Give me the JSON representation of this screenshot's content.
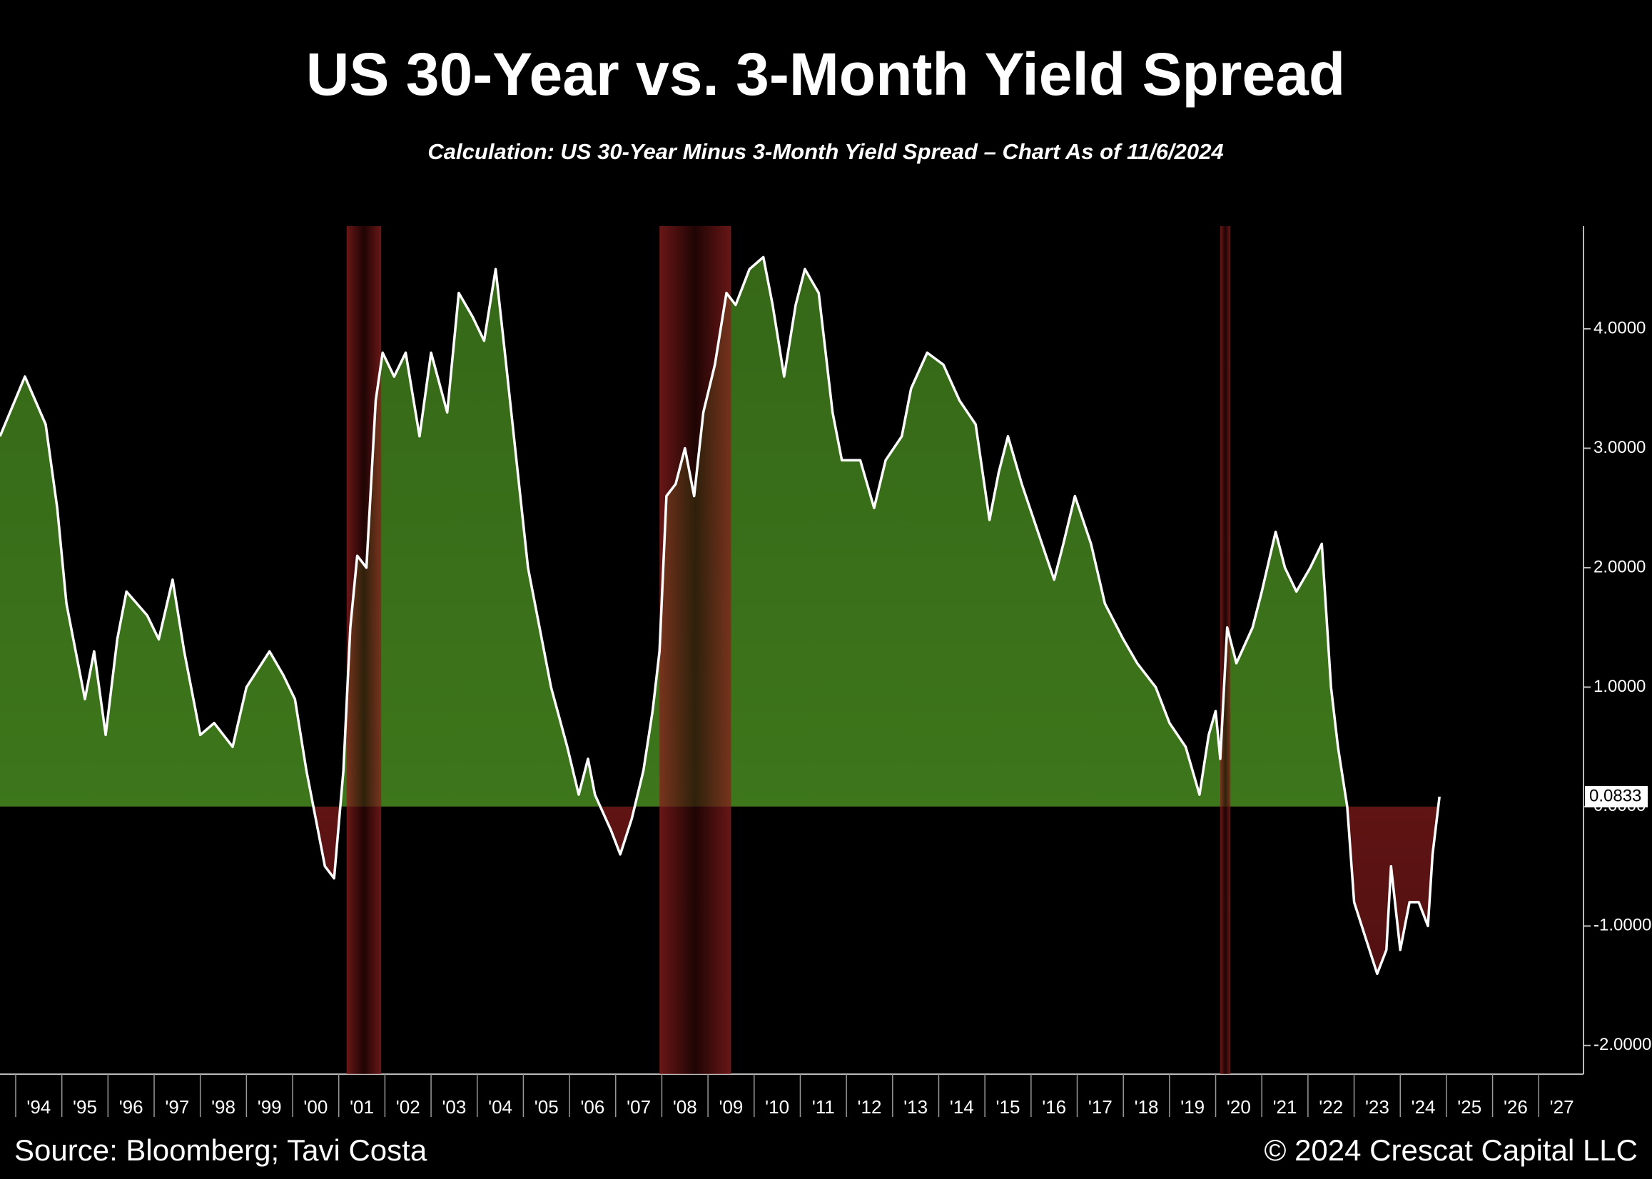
{
  "chart_data": {
    "type": "area",
    "title": "US 30-Year vs. 3-Month Yield Spread",
    "subtitle": "Calculation: US 30-Year Minus 3-Month Yield Spread – Chart As of 11/6/2024",
    "source": "Source: Bloomberg; Tavi Costa",
    "copyright": "© 2024 Crescat Capital LLC",
    "xlim": [
      1993.66,
      2027.97
    ],
    "ylim": [
      -2.24,
      4.86
    ],
    "xticks": [
      {
        "value": 1994.5,
        "label": "'94"
      },
      {
        "value": 1995.5,
        "label": "'95"
      },
      {
        "value": 1996.5,
        "label": "'96"
      },
      {
        "value": 1997.5,
        "label": "'97"
      },
      {
        "value": 1998.5,
        "label": "'98"
      },
      {
        "value": 1999.5,
        "label": "'99"
      },
      {
        "value": 2000.5,
        "label": "'00"
      },
      {
        "value": 2001.5,
        "label": "'01"
      },
      {
        "value": 2002.5,
        "label": "'02"
      },
      {
        "value": 2003.5,
        "label": "'03"
      },
      {
        "value": 2004.5,
        "label": "'04"
      },
      {
        "value": 2005.5,
        "label": "'05"
      },
      {
        "value": 2006.5,
        "label": "'06"
      },
      {
        "value": 2007.5,
        "label": "'07"
      },
      {
        "value": 2008.5,
        "label": "'08"
      },
      {
        "value": 2009.5,
        "label": "'09"
      },
      {
        "value": 2010.5,
        "label": "'10"
      },
      {
        "value": 2011.5,
        "label": "'11"
      },
      {
        "value": 2012.5,
        "label": "'12"
      },
      {
        "value": 2013.5,
        "label": "'13"
      },
      {
        "value": 2014.5,
        "label": "'14"
      },
      {
        "value": 2015.5,
        "label": "'15"
      },
      {
        "value": 2016.5,
        "label": "'16"
      },
      {
        "value": 2017.5,
        "label": "'17"
      },
      {
        "value": 2018.5,
        "label": "'18"
      },
      {
        "value": 2019.5,
        "label": "'19"
      },
      {
        "value": 2020.5,
        "label": "'20"
      },
      {
        "value": 2021.5,
        "label": "'21"
      },
      {
        "value": 2022.5,
        "label": "'22"
      },
      {
        "value": 2023.5,
        "label": "'23"
      },
      {
        "value": 2024.5,
        "label": "'24"
      },
      {
        "value": 2025.5,
        "label": "'25"
      },
      {
        "value": 2026.5,
        "label": "'26"
      },
      {
        "value": 2027.5,
        "label": "'27"
      }
    ],
    "yticks": [
      {
        "value": -2,
        "label": "-2.0000"
      },
      {
        "value": -1,
        "label": "-1.0000"
      },
      {
        "value": 0,
        "label": "0.0000"
      },
      {
        "value": 1,
        "label": "1.0000"
      },
      {
        "value": 2,
        "label": "2.0000"
      },
      {
        "value": 3,
        "label": "3.0000"
      },
      {
        "value": 4,
        "label": "4.0000"
      }
    ],
    "recessions": [
      [
        2001.17,
        2001.92
      ],
      [
        2007.95,
        2009.5
      ],
      [
        2020.1,
        2020.32
      ]
    ],
    "recession_color": "#8c1e1e",
    "positive_color": "#3f7a1c",
    "negative_color": "#8a1c1c",
    "last_value_label": "0.0833",
    "series": [
      {
        "color": "#ffffff",
        "x": [
          1993.66,
          1994.2,
          1994.65,
          1994.9,
          1995.1,
          1995.5,
          1995.7,
          1995.95,
          1996.2,
          1996.4,
          1996.85,
          1997.1,
          1997.4,
          1997.65,
          1998.0,
          1998.3,
          1998.7,
          1999.0,
          1999.5,
          1999.8,
          2000.05,
          2000.3,
          2000.5,
          2000.7,
          2000.9,
          2001.1,
          2001.25,
          2001.4,
          2001.6,
          2001.8,
          2001.95,
          2002.2,
          2002.45,
          2002.75,
          2003.0,
          2003.35,
          2003.6,
          2003.9,
          2004.15,
          2004.4,
          2004.6,
          2004.85,
          2005.1,
          2005.4,
          2005.6,
          2005.95,
          2006.2,
          2006.4,
          2006.55,
          2006.9,
          2007.1,
          2007.35,
          2007.6,
          2007.8,
          2007.95,
          2008.1,
          2008.3,
          2008.5,
          2008.7,
          2008.9,
          2009.15,
          2009.4,
          2009.6,
          2009.9,
          2010.2,
          2010.4,
          2010.65,
          2010.9,
          2011.1,
          2011.4,
          2011.7,
          2011.9,
          2012.3,
          2012.6,
          2012.85,
          2013.2,
          2013.4,
          2013.75,
          2014.1,
          2014.45,
          2014.8,
          2015.1,
          2015.3,
          2015.5,
          2015.8,
          2016.15,
          2016.5,
          2016.7,
          2016.95,
          2017.3,
          2017.6,
          2018.0,
          2018.3,
          2018.7,
          2019.0,
          2019.35,
          2019.65,
          2019.85,
          2020.0,
          2020.1,
          2020.25,
          2020.45,
          2020.8,
          2021.0,
          2021.3,
          2021.5,
          2021.75,
          2022.05,
          2022.3,
          2022.5,
          2022.65,
          2022.85,
          2023.0,
          2023.25,
          2023.5,
          2023.7,
          2023.8,
          2024.0,
          2024.2,
          2024.4,
          2024.6,
          2024.7,
          2024.85
        ],
        "values": [
          3.1,
          3.6,
          3.2,
          2.5,
          1.7,
          0.9,
          1.3,
          0.6,
          1.4,
          1.8,
          1.6,
          1.4,
          1.9,
          1.3,
          0.6,
          0.7,
          0.5,
          1.0,
          1.3,
          1.1,
          0.9,
          0.3,
          -0.1,
          -0.5,
          -0.6,
          0.3,
          1.5,
          2.1,
          2.0,
          3.4,
          3.8,
          3.6,
          3.8,
          3.1,
          3.8,
          3.3,
          4.3,
          4.1,
          3.9,
          4.5,
          3.8,
          2.9,
          2.0,
          1.4,
          1.0,
          0.5,
          0.1,
          0.4,
          0.1,
          -0.2,
          -0.4,
          -0.1,
          0.3,
          0.8,
          1.3,
          2.6,
          2.7,
          3.0,
          2.6,
          3.3,
          3.7,
          4.3,
          4.2,
          4.5,
          4.6,
          4.2,
          3.6,
          4.2,
          4.5,
          4.3,
          3.3,
          2.9,
          2.9,
          2.5,
          2.9,
          3.1,
          3.5,
          3.8,
          3.7,
          3.4,
          3.2,
          2.4,
          2.8,
          3.1,
          2.7,
          2.3,
          1.9,
          2.2,
          2.6,
          2.2,
          1.7,
          1.4,
          1.2,
          1.0,
          0.7,
          0.5,
          0.1,
          0.6,
          0.8,
          0.4,
          1.5,
          1.2,
          1.5,
          1.8,
          2.3,
          2.0,
          1.8,
          2.0,
          2.2,
          1.0,
          0.5,
          0.0,
          -0.8,
          -1.1,
          -1.4,
          -1.2,
          -0.5,
          -1.2,
          -0.8,
          -0.8,
          -1.0,
          -0.4,
          0.0833
        ]
      }
    ]
  }
}
